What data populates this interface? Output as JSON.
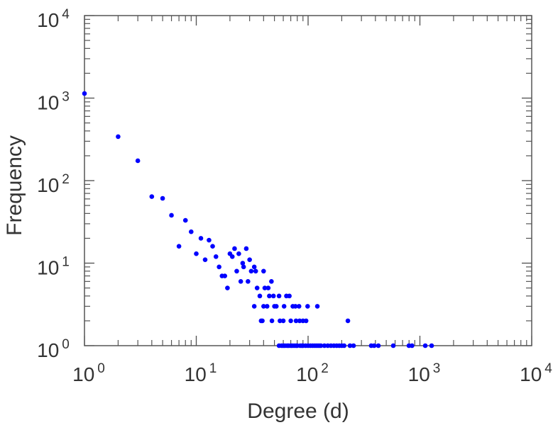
{
  "chart_data": {
    "type": "scatter",
    "title": "",
    "xlabel": "Degree (d)",
    "ylabel": "Frequency",
    "xscale": "log",
    "yscale": "log",
    "xlim": [
      1,
      10000
    ],
    "ylim": [
      1,
      10000
    ],
    "grid": false,
    "marker_color": "#0000ff",
    "x_ticks": [
      {
        "base": "10",
        "exp": "0"
      },
      {
        "base": "10",
        "exp": "1"
      },
      {
        "base": "10",
        "exp": "2"
      },
      {
        "base": "10",
        "exp": "3"
      },
      {
        "base": "10",
        "exp": "4"
      }
    ],
    "y_ticks": [
      {
        "base": "10",
        "exp": "0"
      },
      {
        "base": "10",
        "exp": "1"
      },
      {
        "base": "10",
        "exp": "2"
      },
      {
        "base": "10",
        "exp": "3"
      },
      {
        "base": "10",
        "exp": "4"
      }
    ],
    "points": [
      [
        1,
        1137
      ],
      [
        2,
        341
      ],
      [
        3,
        174
      ],
      [
        4,
        64
      ],
      [
        5,
        61
      ],
      [
        6,
        38
      ],
      [
        7,
        16
      ],
      [
        8,
        33
      ],
      [
        9,
        24
      ],
      [
        10,
        13
      ],
      [
        11,
        20
      ],
      [
        12,
        11
      ],
      [
        13,
        19
      ],
      [
        14,
        16
      ],
      [
        15,
        12
      ],
      [
        16,
        9
      ],
      [
        17,
        7
      ],
      [
        18,
        7
      ],
      [
        19,
        5
      ],
      [
        20,
        13
      ],
      [
        21,
        12
      ],
      [
        22,
        15
      ],
      [
        23,
        8
      ],
      [
        24,
        13
      ],
      [
        25,
        6
      ],
      [
        26,
        10
      ],
      [
        26.5,
        9
      ],
      [
        28,
        15
      ],
      [
        29,
        6
      ],
      [
        30,
        11
      ],
      [
        31,
        8
      ],
      [
        33,
        9
      ],
      [
        33,
        3
      ],
      [
        34,
        8
      ],
      [
        35,
        5
      ],
      [
        37,
        4
      ],
      [
        38,
        2
      ],
      [
        39,
        2
      ],
      [
        40,
        8
      ],
      [
        40,
        3
      ],
      [
        41,
        5
      ],
      [
        43,
        3
      ],
      [
        44,
        5
      ],
      [
        45,
        4
      ],
      [
        47,
        6
      ],
      [
        47.5,
        2
      ],
      [
        49,
        4
      ],
      [
        50,
        3
      ],
      [
        52,
        3
      ],
      [
        55,
        4
      ],
      [
        56,
        2
      ],
      [
        60,
        2
      ],
      [
        61,
        3
      ],
      [
        64,
        4
      ],
      [
        68,
        4
      ],
      [
        70,
        2
      ],
      [
        73,
        3
      ],
      [
        77,
        3
      ],
      [
        78,
        2
      ],
      [
        83,
        3
      ],
      [
        84,
        2
      ],
      [
        90,
        2
      ],
      [
        96,
        2
      ],
      [
        99,
        3
      ],
      [
        121,
        3
      ],
      [
        227,
        2
      ],
      [
        55,
        1
      ],
      [
        58,
        1
      ],
      [
        60,
        1
      ],
      [
        62,
        1
      ],
      [
        65,
        1
      ],
      [
        67,
        1
      ],
      [
        70,
        1
      ],
      [
        72,
        1
      ],
      [
        75,
        1
      ],
      [
        78,
        1
      ],
      [
        80,
        1
      ],
      [
        85,
        1
      ],
      [
        88,
        1
      ],
      [
        90,
        1
      ],
      [
        95,
        1
      ],
      [
        100,
        1
      ],
      [
        105,
        1
      ],
      [
        110,
        1
      ],
      [
        115,
        1
      ],
      [
        120,
        1
      ],
      [
        125,
        1
      ],
      [
        130,
        1
      ],
      [
        140,
        1
      ],
      [
        150,
        1
      ],
      [
        160,
        1
      ],
      [
        170,
        1
      ],
      [
        180,
        1
      ],
      [
        190,
        1
      ],
      [
        200,
        1
      ],
      [
        210,
        1
      ],
      [
        237,
        1
      ],
      [
        255,
        1
      ],
      [
        367,
        1
      ],
      [
        390,
        1
      ],
      [
        425,
        1
      ],
      [
        578,
        1
      ],
      [
        798,
        1
      ],
      [
        850,
        1
      ],
      [
        1117,
        1
      ],
      [
        1273,
        1
      ]
    ]
  }
}
